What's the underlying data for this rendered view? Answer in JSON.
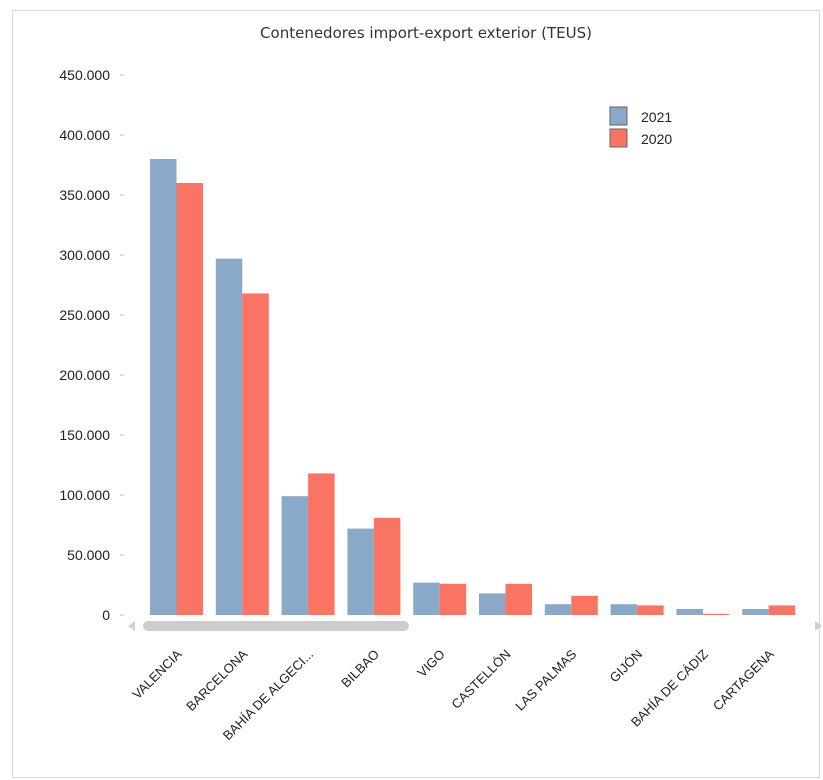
{
  "chart_data": {
    "type": "bar",
    "title": "Contenedores import-export exterior (TEUS)",
    "xlabel": "",
    "ylabel": "",
    "ylim": [
      0,
      450000
    ],
    "yticks": [
      "0",
      "50.000",
      "100.000",
      "150.000",
      "200.000",
      "250.000",
      "300.000",
      "350.000",
      "400.000",
      "450.000"
    ],
    "categories": [
      "VALENCIA",
      "BARCELONA",
      "BAHÍA DE ALGECI...",
      "BILBAO",
      "VIGO",
      "CASTELLÓN",
      "LAS PALMAS",
      "GIJÓN",
      "BAHÍA DE CÁDIZ",
      "CARTAGENA"
    ],
    "series": [
      {
        "name": "2021",
        "color": "#8aa8c8",
        "values": [
          380000,
          297000,
          99000,
          72000,
          27000,
          18000,
          9000,
          9000,
          5000,
          5000
        ]
      },
      {
        "name": "2020",
        "color": "#fa7463",
        "values": [
          360000,
          268000,
          118000,
          81000,
          26000,
          26000,
          16000,
          8000,
          1000,
          8000
        ]
      }
    ],
    "legend_position": "top-right",
    "grid": false,
    "scrollbar": true
  }
}
